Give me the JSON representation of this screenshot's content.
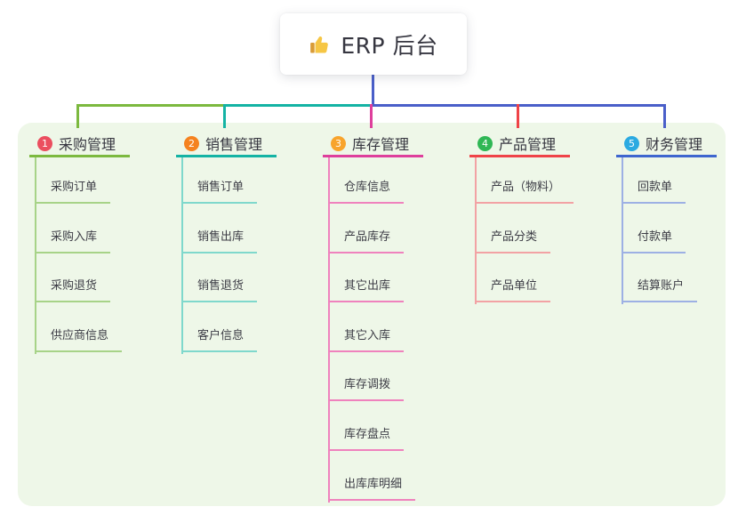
{
  "root": {
    "label": "ERP 后台",
    "icon": "thumbs-up"
  },
  "colors": {
    "page_bg": "#ffffff",
    "panel_bg": "#eef7e8",
    "card_bg": "#ffffff",
    "text": "#363640",
    "root_connector": "#4a5fc9"
  },
  "branches": [
    {
      "num": "1",
      "label": "采购管理",
      "badge_color": "#eb4e5f",
      "line_color": "#7cb93f",
      "child_line_color": "#a7d388",
      "children": [
        "采购订单",
        "采购入库",
        "采购退货",
        "供应商信息"
      ]
    },
    {
      "num": "2",
      "label": "销售管理",
      "badge_color": "#f5821f",
      "line_color": "#14b3a4",
      "child_line_color": "#7fd8cc",
      "children": [
        "销售订单",
        "销售出库",
        "销售退货",
        "客户信息"
      ]
    },
    {
      "num": "3",
      "label": "库存管理",
      "badge_color": "#f8a42c",
      "line_color": "#de3f9c",
      "child_line_color": "#ef82bd",
      "children": [
        "仓库信息",
        "产品库存",
        "其它出库",
        "其它入库",
        "库存调拨",
        "库存盘点",
        "出库库明细"
      ]
    },
    {
      "num": "4",
      "label": "产品管理",
      "badge_color": "#2fb755",
      "line_color": "#ef4348",
      "child_line_color": "#f2a2a4",
      "children": [
        "产品（物料）",
        "产品分类",
        "产品单位"
      ]
    },
    {
      "num": "5",
      "label": "财务管理",
      "badge_color": "#2baae1",
      "line_color": "#3e66cf",
      "child_line_color": "#9db0e4",
      "children": [
        "回款单",
        "付款单",
        "结算账户"
      ]
    }
  ]
}
